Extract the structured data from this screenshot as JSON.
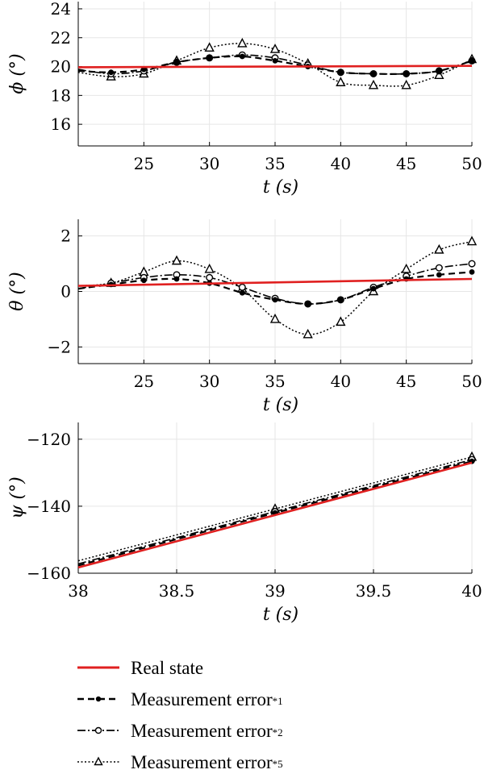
{
  "chart_data": [
    {
      "type": "line",
      "ylabel": "ϕ (°)",
      "xlabel": "t (s)",
      "xlim": [
        20,
        50
      ],
      "ylim": [
        14.5,
        24.5
      ],
      "xticks": [
        25,
        30,
        35,
        40,
        45,
        50
      ],
      "xtick_labels": [
        "25",
        "30",
        "35",
        "40",
        "45",
        "50"
      ],
      "yticks": [
        16,
        18,
        20,
        22,
        24
      ],
      "ytick_labels": [
        "16",
        "18",
        "20",
        "22",
        "24"
      ],
      "grid": true,
      "series": [
        {
          "key": "real",
          "x": [
            20,
            50
          ],
          "y": [
            19.95,
            20.05
          ]
        },
        {
          "key": "e1",
          "x": [
            20,
            22.5,
            25,
            27.5,
            30,
            32.5,
            35,
            37.5,
            40,
            42.5,
            45,
            47.5,
            50
          ],
          "y": [
            19.7,
            19.6,
            19.8,
            20.3,
            20.6,
            20.7,
            20.4,
            20.0,
            19.6,
            19.5,
            19.5,
            19.7,
            20.4
          ]
        },
        {
          "key": "e2",
          "x": [
            20,
            22.5,
            25,
            27.5,
            30,
            32.5,
            35,
            37.5,
            40,
            42.5,
            45,
            47.5,
            50
          ],
          "y": [
            19.8,
            19.5,
            19.7,
            20.3,
            20.6,
            20.8,
            20.6,
            20.1,
            19.6,
            19.5,
            19.5,
            19.7,
            20.4
          ]
        },
        {
          "key": "e5",
          "x": [
            20,
            22.5,
            25,
            27.5,
            30,
            32.5,
            35,
            37.5,
            40,
            42.5,
            45,
            47.5,
            50
          ],
          "y": [
            19.6,
            19.3,
            19.5,
            20.4,
            21.3,
            21.6,
            21.2,
            20.2,
            18.9,
            18.7,
            18.7,
            19.4,
            20.5
          ]
        }
      ]
    },
    {
      "type": "line",
      "ylabel": "θ (°)",
      "xlabel": "t (s)",
      "xlim": [
        20,
        50
      ],
      "ylim": [
        -2.6,
        2.6
      ],
      "xticks": [
        25,
        30,
        35,
        40,
        45,
        50
      ],
      "xtick_labels": [
        "25",
        "30",
        "35",
        "40",
        "45",
        "50"
      ],
      "yticks": [
        -2,
        0,
        2
      ],
      "ytick_labels": [
        "−2",
        "0",
        "2"
      ],
      "grid": true,
      "series": [
        {
          "key": "real",
          "x": [
            20,
            50
          ],
          "y": [
            0.2,
            0.45
          ]
        },
        {
          "key": "e1",
          "x": [
            20,
            22.5,
            25,
            27.5,
            30,
            32.5,
            35,
            37.5,
            40,
            42.5,
            45,
            47.5,
            50
          ],
          "y": [
            0.1,
            0.25,
            0.4,
            0.45,
            0.3,
            -0.05,
            -0.3,
            -0.45,
            -0.3,
            0.1,
            0.45,
            0.6,
            0.7
          ]
        },
        {
          "key": "e2",
          "x": [
            20,
            22.5,
            25,
            27.5,
            30,
            32.5,
            35,
            37.5,
            40,
            42.5,
            45,
            47.5,
            50
          ],
          "y": [
            0.1,
            0.3,
            0.5,
            0.6,
            0.5,
            0.15,
            -0.25,
            -0.45,
            -0.3,
            0.15,
            0.55,
            0.85,
            1.0
          ]
        },
        {
          "key": "e5",
          "x": [
            20,
            22.5,
            25,
            27.5,
            30,
            32.5,
            35,
            37.5,
            40,
            42.5,
            45,
            47.5,
            50
          ],
          "y": [
            0.2,
            0.3,
            0.7,
            1.1,
            0.8,
            0.1,
            -1.0,
            -1.55,
            -1.1,
            0.0,
            0.8,
            1.5,
            1.8
          ]
        }
      ]
    },
    {
      "type": "line",
      "ylabel": "ψ (°)",
      "xlabel": "t (s)",
      "xlim": [
        38,
        40
      ],
      "ylim": [
        -160,
        -115
      ],
      "xticks": [
        38,
        38.5,
        39,
        39.5,
        40
      ],
      "xtick_labels": [
        "38",
        "38.5",
        "39",
        "39.5",
        "40"
      ],
      "yticks": [
        -160,
        -140,
        -120
      ],
      "ytick_labels": [
        "−160",
        "−140",
        "−120"
      ],
      "grid": true,
      "series": [
        {
          "key": "real",
          "x": [
            38,
            40
          ],
          "y": [
            -158.3,
            -127.0
          ]
        },
        {
          "key": "e1",
          "x": [
            38,
            39,
            40
          ],
          "y": [
            -157.7,
            -142.0,
            -126.6
          ]
        },
        {
          "key": "e2",
          "x": [
            38,
            39,
            40
          ],
          "y": [
            -157.2,
            -141.6,
            -126.1
          ]
        },
        {
          "key": "e5",
          "x": [
            38,
            39,
            40
          ],
          "y": [
            -156.3,
            -140.8,
            -125.3
          ]
        }
      ]
    }
  ],
  "legend": {
    "real": "Real state",
    "e1_main": "Measurement error",
    "e1_sub": "*1",
    "e2_main": "Measurement error",
    "e2_sub": "*2",
    "e5_main": "Measurement error",
    "e5_sub": "*5"
  },
  "colors": {
    "real": "#e02020",
    "errors": "#000000",
    "grid": "#e6e6e6"
  }
}
